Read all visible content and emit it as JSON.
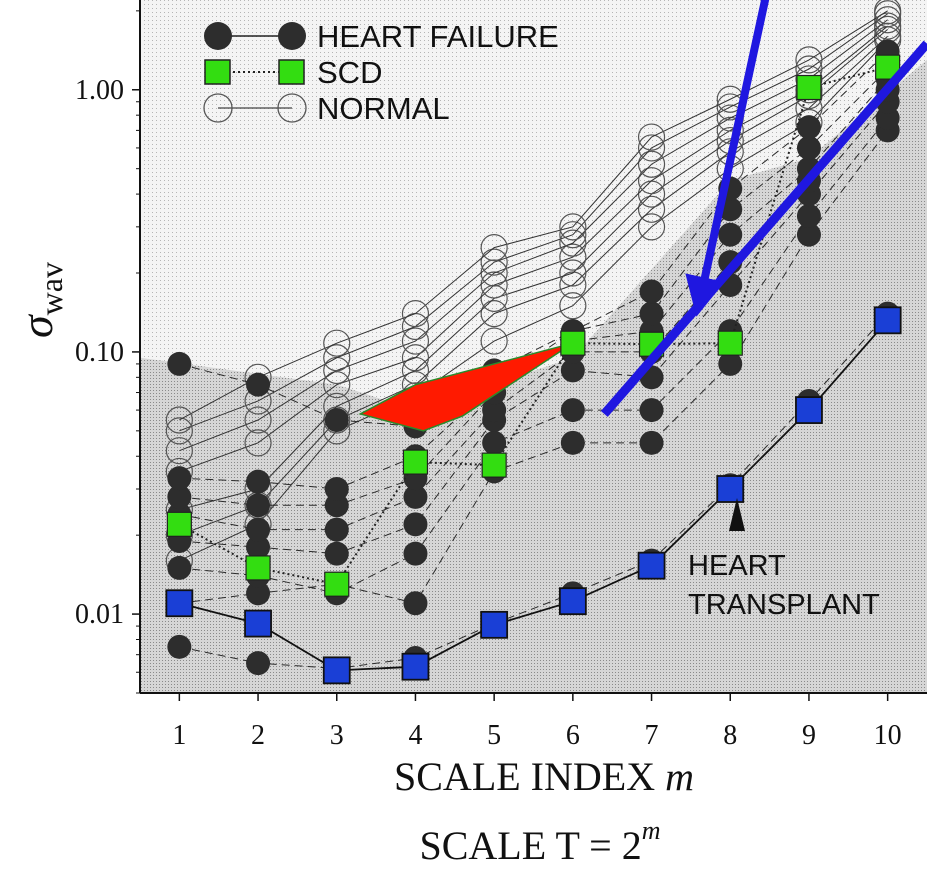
{
  "chart_data": {
    "type": "line",
    "x_label_text": "SCALE INDEX",
    "x_label_var": "m",
    "subtitle_prefix": "SCALE T = 2",
    "subtitle_sup": "m",
    "y_label_main": "σ",
    "y_label_sub": "wav",
    "y_scale": "log",
    "x_ticks": [
      1,
      2,
      3,
      4,
      5,
      6,
      7,
      8,
      9,
      10
    ],
    "x_range": [
      0.5,
      10.5
    ],
    "y_range": [
      0.005,
      2.2
    ],
    "y_ticks": [
      {
        "value": 0.01,
        "label": "0.01"
      },
      {
        "value": 0.1,
        "label": "0.10"
      },
      {
        "value": 1.0,
        "label": "1.00"
      }
    ],
    "legend": [
      {
        "name": "HEART FAILURE",
        "marker": "filled-circle"
      },
      {
        "name": "SCD",
        "marker": "green-square"
      },
      {
        "name": "NORMAL",
        "marker": "open-circle"
      }
    ],
    "scd_series": {
      "x": [
        1,
        2,
        3,
        4,
        5,
        6,
        7,
        8,
        9,
        10
      ],
      "values": [
        0.022,
        0.015,
        0.013,
        0.038,
        0.037,
        0.108,
        0.107,
        0.108,
        1.02,
        1.22
      ]
    },
    "transplant_series": {
      "label_line1": "HEART",
      "label_line2": "TRANSPLANT",
      "x": [
        1,
        2,
        3,
        4,
        5,
        6,
        7,
        8,
        9,
        10
      ],
      "values": [
        0.011,
        0.0092,
        0.0061,
        0.0063,
        0.0091,
        0.0112,
        0.0153,
        0.03,
        0.06,
        0.132
      ]
    },
    "heart_failure_series": [
      [
        0.0075,
        0.0065,
        0.0062,
        0.0068,
        0.0092,
        0.012,
        0.016,
        0.031,
        0.065,
        0.14
      ],
      [
        0.011,
        0.012,
        0.013,
        0.011,
        0.035,
        0.045,
        0.045,
        0.09,
        0.28,
        0.7
      ],
      [
        0.015,
        0.014,
        0.012,
        0.017,
        0.045,
        0.06,
        0.06,
        0.12,
        0.33,
        0.78
      ],
      [
        0.019,
        0.018,
        0.017,
        0.022,
        0.055,
        0.085,
        0.08,
        0.18,
        0.4,
        0.9
      ],
      [
        0.024,
        0.021,
        0.021,
        0.028,
        0.06,
        0.1,
        0.1,
        0.22,
        0.45,
        1.0
      ],
      [
        0.028,
        0.026,
        0.026,
        0.033,
        0.07,
        0.11,
        0.12,
        0.28,
        0.5,
        1.1
      ],
      [
        0.033,
        0.032,
        0.03,
        0.04,
        0.075,
        0.12,
        0.14,
        0.35,
        0.6,
        1.2
      ],
      [
        0.09,
        0.075,
        0.055,
        0.052,
        0.085,
        0.12,
        0.17,
        0.42,
        0.72,
        1.4
      ]
    ],
    "normal_series": [
      [
        0.016,
        0.022,
        0.05,
        0.068,
        0.11,
        0.15,
        0.3,
        0.5,
        0.75,
        1.55
      ],
      [
        0.02,
        0.026,
        0.055,
        0.075,
        0.14,
        0.18,
        0.35,
        0.58,
        0.85,
        1.6
      ],
      [
        0.025,
        0.03,
        0.062,
        0.085,
        0.16,
        0.2,
        0.4,
        0.64,
        0.95,
        1.7
      ],
      [
        0.035,
        0.045,
        0.075,
        0.095,
        0.18,
        0.23,
        0.45,
        0.7,
        1.0,
        1.75
      ],
      [
        0.042,
        0.055,
        0.085,
        0.11,
        0.2,
        0.26,
        0.52,
        0.78,
        1.1,
        1.85
      ],
      [
        0.05,
        0.065,
        0.095,
        0.125,
        0.22,
        0.28,
        0.6,
        0.86,
        1.2,
        1.95
      ],
      [
        0.055,
        0.08,
        0.108,
        0.14,
        0.25,
        0.3,
        0.66,
        0.92,
        1.3,
        2.0
      ]
    ],
    "blue_trend_line": {
      "x": [
        6.4,
        10.5
      ],
      "values": [
        0.058,
        1.5
      ]
    },
    "blue_arrow": {
      "from": {
        "x": 8.7,
        "value": 5.0
      },
      "to": {
        "x": 7.6,
        "value": 0.15
      }
    },
    "red_region": {
      "points": [
        [
          3.3,
          0.058
        ],
        [
          4.0,
          0.075
        ],
        [
          6.0,
          0.108
        ],
        [
          4.6,
          0.057
        ],
        [
          4.1,
          0.05
        ]
      ]
    },
    "colors": {
      "scd": "#33dd11",
      "transplant": "#1a3fd6",
      "blue_annotation": "#1f17e0",
      "red_region": "#ff1a00",
      "filled_circle": "#2d2d2d",
      "shade_light": "#efefef",
      "shade_dark": "#c8c8c8"
    }
  }
}
